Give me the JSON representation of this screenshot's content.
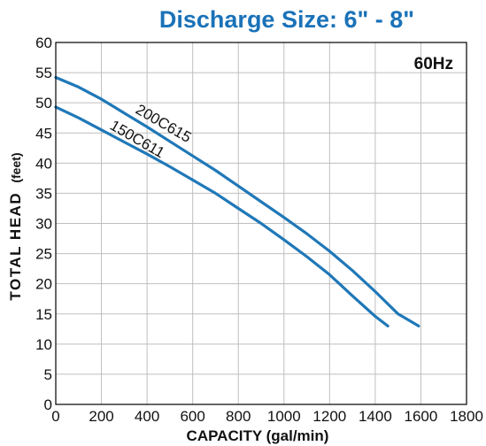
{
  "chart_data": {
    "type": "line",
    "title": "Discharge Size: 6\" - 8\"",
    "frequency_label": "60Hz",
    "xlabel": "CAPACITY (gal/min)",
    "ylabel_main": "TOTAL HEAD",
    "ylabel_unit": "(feet)",
    "xlim": [
      0,
      1800
    ],
    "ylim": [
      0,
      60
    ],
    "x_ticks": [
      0,
      200,
      400,
      600,
      800,
      1000,
      1200,
      1400,
      1600,
      1800
    ],
    "y_ticks": [
      0,
      5,
      10,
      15,
      20,
      25,
      30,
      35,
      40,
      45,
      50,
      55,
      60
    ],
    "grid": true,
    "colors": {
      "title": "#1a72b8",
      "series": "#1f78b8",
      "grid": "#bfbfbf"
    },
    "series": [
      {
        "name": "200C615",
        "x": [
          0,
          100,
          200,
          300,
          400,
          500,
          600,
          700,
          800,
          900,
          1000,
          1100,
          1200,
          1300,
          1400,
          1500,
          1590
        ],
        "y": [
          54.2,
          52.6,
          50.6,
          48.3,
          46.0,
          43.6,
          41.2,
          38.8,
          36.2,
          33.6,
          31.0,
          28.3,
          25.4,
          22.2,
          18.7,
          15.0,
          13.0
        ]
      },
      {
        "name": "150C611",
        "x": [
          0,
          100,
          200,
          300,
          400,
          500,
          600,
          700,
          800,
          900,
          1000,
          1100,
          1200,
          1300,
          1400,
          1455
        ],
        "y": [
          49.3,
          47.5,
          45.5,
          43.5,
          41.5,
          39.4,
          37.2,
          35.0,
          32.5,
          30.0,
          27.3,
          24.5,
          21.5,
          18.0,
          14.6,
          13.0
        ]
      }
    ]
  }
}
